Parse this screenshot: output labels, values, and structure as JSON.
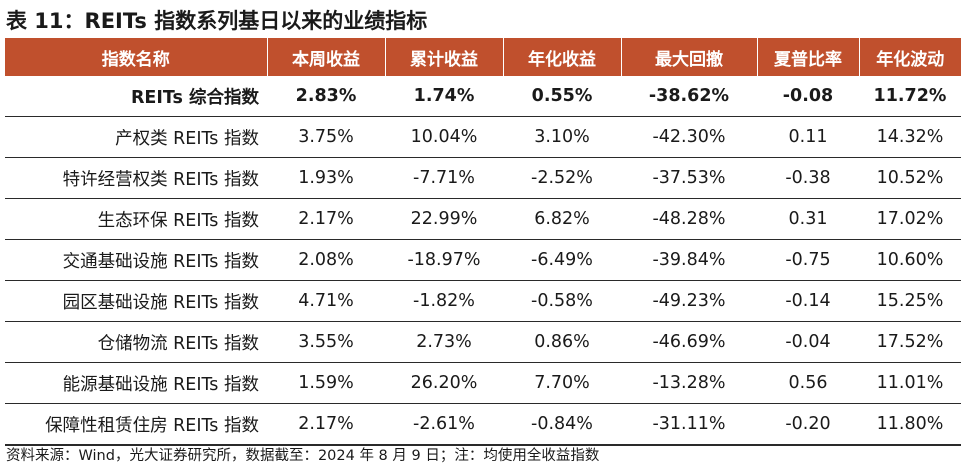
{
  "title": "表 11：REITs 指数系列基日以来的业绩指标",
  "table": {
    "headers": [
      "指数名称",
      "本周收益",
      "累计收益",
      "年化收益",
      "最大回撤",
      "夏普比率",
      "年化波动"
    ],
    "rows": [
      [
        "REITs 综合指数",
        "2.83%",
        "1.74%",
        "0.55%",
        "-38.62%",
        "-0.08",
        "11.72%"
      ],
      [
        "产权类 REITs 指数",
        "3.75%",
        "10.04%",
        "3.10%",
        "-42.30%",
        "0.11",
        "14.32%"
      ],
      [
        "特许经营权类 REITs 指数",
        "1.93%",
        "-7.71%",
        "-2.52%",
        "-37.53%",
        "-0.38",
        "10.52%"
      ],
      [
        "生态环保 REITs 指数",
        "2.17%",
        "22.99%",
        "6.82%",
        "-48.28%",
        "0.31",
        "17.02%"
      ],
      [
        "交通基础设施 REITs 指数",
        "2.08%",
        "-18.97%",
        "-6.49%",
        "-39.84%",
        "-0.75",
        "10.60%"
      ],
      [
        "园区基础设施 REITs 指数",
        "4.71%",
        "-1.82%",
        "-0.58%",
        "-49.23%",
        "-0.14",
        "15.25%"
      ],
      [
        "仓储物流 REITs 指数",
        "3.55%",
        "2.73%",
        "0.86%",
        "-46.69%",
        "-0.04",
        "17.52%"
      ],
      [
        "能源基础设施 REITs 指数",
        "1.59%",
        "26.20%",
        "7.70%",
        "-13.28%",
        "0.56",
        "11.01%"
      ],
      [
        "保障性租赁住房 REITs 指数",
        "2.17%",
        "-2.61%",
        "-0.84%",
        "-31.11%",
        "-0.20",
        "11.80%"
      ]
    ]
  },
  "source": "资料来源：Wind，光大证券研究所，数据截至：2024 年 8 月 9 日；注：均使用全收益指数",
  "colors": {
    "header_bg": "#c0502d",
    "header_text": "#ffffff",
    "rule": "#2a2a2a"
  }
}
